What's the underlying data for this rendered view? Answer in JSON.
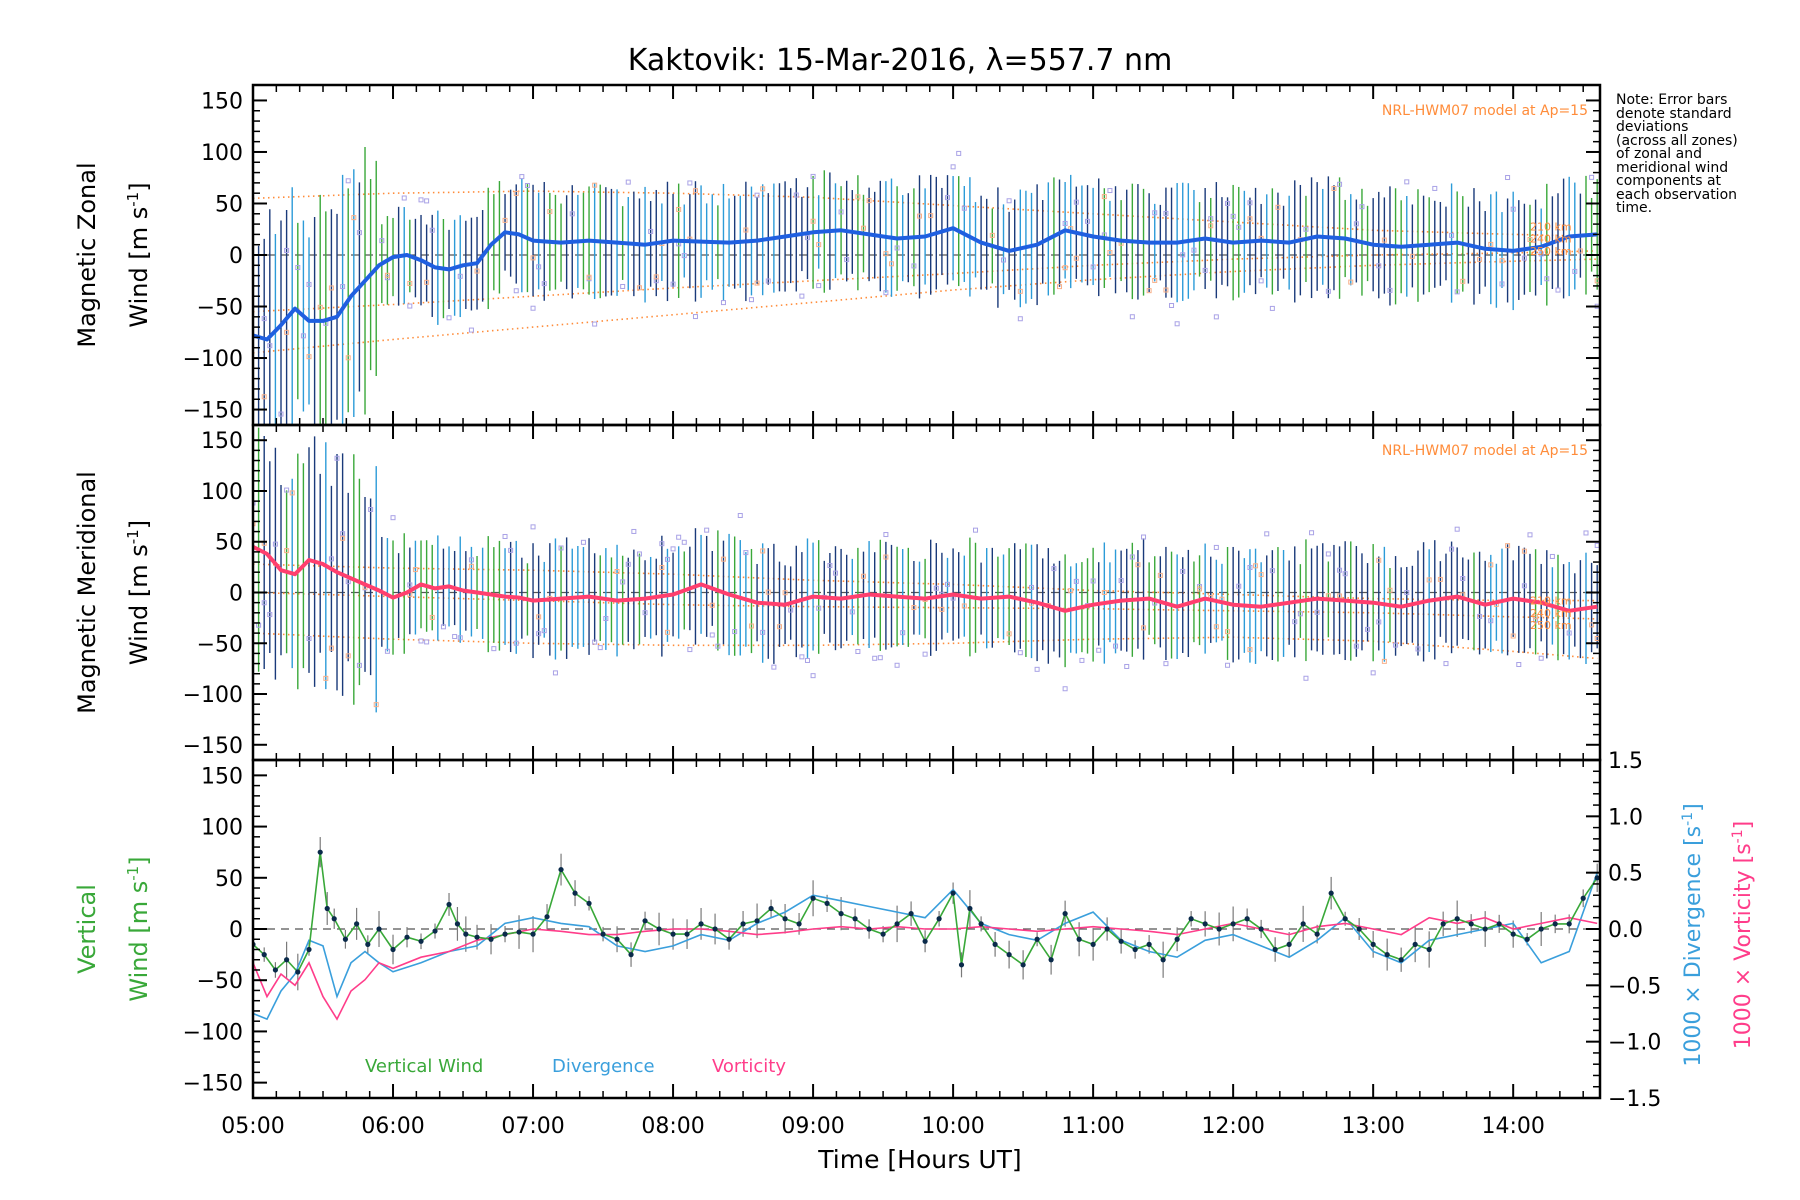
{
  "title": "Kaktovik: 15-Mar-2016, λ=557.7 nm",
  "note_lines": [
    "Note: Error bars",
    "denote standard",
    "deviations",
    "(across all zones)",
    "of zonal and",
    "meridional wind",
    "components at",
    "each observation",
    "time."
  ],
  "xlabel": "Time [Hours UT]",
  "xticks": [
    "05:00",
    "06:00",
    "07:00",
    "08:00",
    "09:00",
    "10:00",
    "11:00",
    "12:00",
    "13:00",
    "14:00"
  ],
  "xticks_hours": [
    5,
    6,
    7,
    8,
    9,
    10,
    11,
    12,
    13,
    14
  ],
  "colors": {
    "zonal_mean": "#1f5fe0",
    "meridional_mean": "#ff3f6e",
    "model": "#ff8c3a",
    "scatter": "#a9a2e6",
    "vertical": "#39a839",
    "divergence": "#3a9fdc",
    "vorticity": "#ff3d8a",
    "points": "#0a2a4a"
  },
  "chart_data": [
    {
      "type": "line",
      "name": "zonal-panel",
      "ylabel_line1": "Magnetic Zonal",
      "ylabel_line2": "Wind [m s",
      "ylabel_sup": "-1",
      "ylabel_close": "]",
      "model_label": "NRL-HWM07 model at Ap=15",
      "model_alt_labels": [
        "210 km",
        "240 km",
        "250 km"
      ],
      "xlim": [
        5.0,
        14.62
      ],
      "ylim": [
        -165,
        165
      ],
      "yticks": [
        "-150",
        "-100",
        "-50",
        "0",
        "50",
        "100",
        "150"
      ],
      "yticks_values": [
        -150,
        -100,
        -50,
        0,
        50,
        100,
        150
      ],
      "mean_x": [
        5.0,
        5.1,
        5.2,
        5.3,
        5.4,
        5.5,
        5.6,
        5.7,
        5.8,
        5.9,
        6.0,
        6.1,
        6.2,
        6.3,
        6.4,
        6.5,
        6.6,
        6.7,
        6.8,
        6.9,
        7.0,
        7.2,
        7.4,
        7.6,
        7.8,
        8.0,
        8.2,
        8.4,
        8.6,
        8.8,
        9.0,
        9.2,
        9.4,
        9.6,
        9.8,
        10.0,
        10.2,
        10.4,
        10.6,
        10.8,
        11.0,
        11.2,
        11.4,
        11.6,
        11.8,
        12.0,
        12.2,
        12.4,
        12.6,
        12.8,
        13.0,
        13.2,
        13.4,
        13.6,
        13.8,
        14.0,
        14.2,
        14.4,
        14.6
      ],
      "mean_y": [
        -78,
        -82,
        -68,
        -52,
        -64,
        -64,
        -60,
        -40,
        -25,
        -10,
        -2,
        0,
        -5,
        -12,
        -14,
        -10,
        -8,
        10,
        22,
        20,
        14,
        12,
        14,
        12,
        10,
        14,
        13,
        12,
        14,
        18,
        22,
        24,
        20,
        16,
        18,
        26,
        12,
        4,
        10,
        24,
        18,
        14,
        12,
        12,
        16,
        12,
        14,
        12,
        18,
        16,
        10,
        8,
        10,
        12,
        6,
        4,
        8,
        18,
        20
      ],
      "model_curves": [
        {
          "x": [
            5.0,
            6.0,
            7.0,
            8.0,
            9.0,
            10.0,
            11.0,
            12.0,
            13.0,
            14.0,
            14.6
          ],
          "y": [
            55,
            60,
            62,
            60,
            56,
            48,
            40,
            32,
            24,
            20,
            18
          ]
        },
        {
          "x": [
            5.0,
            6.0,
            7.0,
            8.0,
            9.0,
            10.0,
            11.0,
            12.0,
            13.0,
            14.0,
            14.6
          ],
          "y": [
            -95,
            -82,
            -70,
            -58,
            -46,
            -34,
            -24,
            -16,
            -10,
            -6,
            -4
          ]
        },
        {
          "x": [
            5.0,
            6.0,
            7.0,
            8.0,
            9.0,
            10.0,
            11.0,
            12.0,
            13.0,
            14.0,
            14.6
          ],
          "y": [
            -55,
            -48,
            -40,
            -32,
            -25,
            -18,
            -10,
            -4,
            0,
            2,
            4
          ]
        }
      ]
    },
    {
      "type": "line",
      "name": "meridional-panel",
      "ylabel_line1": "Magnetic Meridional",
      "ylabel_line2": "Wind [m s",
      "ylabel_sup": "-1",
      "ylabel_close": "]",
      "model_label": "NRL-HWM07 model at Ap=15",
      "model_alt_labels": [
        "210 km",
        "240 km",
        "250 km"
      ],
      "xlim": [
        5.0,
        14.62
      ],
      "ylim": [
        -165,
        165
      ],
      "yticks": [
        "-150",
        "-100",
        "-50",
        "0",
        "50",
        "100",
        "150"
      ],
      "yticks_values": [
        -150,
        -100,
        -50,
        0,
        50,
        100,
        150
      ],
      "mean_x": [
        5.0,
        5.1,
        5.2,
        5.3,
        5.4,
        5.5,
        5.6,
        5.7,
        5.8,
        5.9,
        6.0,
        6.1,
        6.2,
        6.3,
        6.4,
        6.5,
        6.6,
        6.7,
        6.8,
        6.9,
        7.0,
        7.2,
        7.4,
        7.6,
        7.8,
        8.0,
        8.2,
        8.4,
        8.6,
        8.8,
        9.0,
        9.2,
        9.4,
        9.6,
        9.8,
        10.0,
        10.2,
        10.4,
        10.6,
        10.8,
        11.0,
        11.2,
        11.4,
        11.6,
        11.8,
        12.0,
        12.2,
        12.4,
        12.6,
        12.8,
        13.0,
        13.2,
        13.4,
        13.6,
        13.8,
        14.0,
        14.2,
        14.4,
        14.6
      ],
      "mean_y": [
        45,
        38,
        22,
        18,
        32,
        28,
        20,
        14,
        8,
        2,
        -5,
        0,
        8,
        4,
        6,
        2,
        0,
        -2,
        -4,
        -5,
        -8,
        -6,
        -4,
        -8,
        -6,
        -2,
        8,
        -2,
        -10,
        -12,
        -4,
        -6,
        -2,
        -4,
        -6,
        -2,
        -6,
        -4,
        -10,
        -18,
        -12,
        -8,
        -6,
        -14,
        -6,
        -12,
        -14,
        -10,
        -6,
        -8,
        -10,
        -14,
        -8,
        -4,
        -12,
        -6,
        -10,
        -18,
        -14
      ],
      "model_curves": [
        {
          "x": [
            5.0,
            6.0,
            7.0,
            8.0,
            9.0,
            10.0,
            11.0,
            12.0,
            13.0,
            14.0,
            14.6
          ],
          "y": [
            28,
            24,
            22,
            18,
            12,
            8,
            2,
            -2,
            -6,
            -8,
            -8
          ]
        },
        {
          "x": [
            5.0,
            6.0,
            7.0,
            8.0,
            9.0,
            10.0,
            11.0,
            12.0,
            13.0,
            14.0,
            14.6
          ],
          "y": [
            -40,
            -46,
            -50,
            -52,
            -52,
            -50,
            -46,
            -44,
            -48,
            -58,
            -65
          ]
        },
        {
          "x": [
            5.0,
            6.0,
            7.0,
            8.0,
            9.0,
            10.0,
            11.0,
            12.0,
            13.0,
            14.0,
            14.6
          ],
          "y": [
            0,
            -4,
            -8,
            -12,
            -14,
            -15,
            -16,
            -18,
            -20,
            -24,
            -26
          ]
        }
      ]
    },
    {
      "type": "line",
      "name": "vertical-panel",
      "ylabel_line1": "Vertical",
      "ylabel_line2": "Wind [m s",
      "ylabel_sup": "-1",
      "ylabel_close": "]",
      "right_label_div": "1000 × Divergence [s",
      "right_label_vort": "1000 × Vorticity [s",
      "right_label_sup": "-1",
      "right_label_close": "]",
      "xlim": [
        5.0,
        14.62
      ],
      "ylim": [
        -165,
        165
      ],
      "yticks": [
        "-150",
        "-100",
        "-50",
        "0",
        "50",
        "100",
        "150"
      ],
      "yticks_values": [
        -150,
        -100,
        -50,
        0,
        50,
        100,
        150
      ],
      "y2lim": [
        -1.5,
        1.5
      ],
      "y2ticks": [
        "-1.5",
        "-1.0",
        "-0.5",
        "0.0",
        "0.5",
        "1.0",
        "1.5"
      ],
      "y2ticks_values": [
        -1.5,
        -1.0,
        -0.5,
        0.0,
        0.5,
        1.0,
        1.5
      ],
      "legend": [
        "Vertical Wind",
        "Divergence",
        "Vorticity"
      ],
      "vertical_x": [
        5.0,
        5.08,
        5.16,
        5.24,
        5.32,
        5.4,
        5.48,
        5.53,
        5.58,
        5.66,
        5.74,
        5.82,
        5.9,
        6.0,
        6.1,
        6.2,
        6.3,
        6.4,
        6.46,
        6.52,
        6.6,
        6.7,
        6.8,
        6.9,
        7.0,
        7.1,
        7.2,
        7.3,
        7.4,
        7.5,
        7.6,
        7.7,
        7.8,
        7.9,
        8.0,
        8.1,
        8.2,
        8.3,
        8.4,
        8.5,
        8.6,
        8.7,
        8.8,
        8.9,
        9.0,
        9.1,
        9.2,
        9.3,
        9.4,
        9.5,
        9.6,
        9.7,
        9.8,
        9.9,
        10.0,
        10.06,
        10.12,
        10.2,
        10.3,
        10.4,
        10.5,
        10.6,
        10.7,
        10.8,
        10.9,
        11.0,
        11.1,
        11.2,
        11.3,
        11.4,
        11.5,
        11.6,
        11.7,
        11.8,
        11.9,
        12.0,
        12.1,
        12.2,
        12.3,
        12.4,
        12.5,
        12.6,
        12.7,
        12.8,
        12.9,
        13.0,
        13.1,
        13.2,
        13.3,
        13.4,
        13.5,
        13.6,
        13.7,
        13.8,
        13.9,
        14.0,
        14.1,
        14.2,
        14.3,
        14.4,
        14.5,
        14.6
      ],
      "vertical_y": [
        -15,
        -25,
        -40,
        -30,
        -42,
        -20,
        75,
        20,
        10,
        -10,
        5,
        -15,
        0,
        -20,
        -8,
        -12,
        -2,
        24,
        5,
        -5,
        -8,
        -10,
        -5,
        -3,
        -5,
        12,
        58,
        35,
        25,
        -5,
        -10,
        -25,
        8,
        0,
        -5,
        -5,
        5,
        0,
        -10,
        5,
        8,
        20,
        10,
        5,
        30,
        25,
        15,
        10,
        0,
        -5,
        5,
        15,
        -12,
        10,
        35,
        -35,
        20,
        5,
        -15,
        -25,
        -35,
        -10,
        -30,
        15,
        -10,
        -15,
        0,
        -12,
        -20,
        -15,
        -30,
        -10,
        10,
        5,
        0,
        5,
        10,
        0,
        -20,
        -15,
        5,
        -5,
        35,
        10,
        0,
        -15,
        -25,
        -30,
        -15,
        -20,
        5,
        10,
        5,
        0,
        5,
        -5,
        -10,
        0,
        5,
        5,
        30,
        50
      ],
      "divergence_x": [
        5.0,
        5.1,
        5.2,
        5.3,
        5.4,
        5.5,
        5.6,
        5.7,
        5.8,
        5.9,
        6.0,
        6.2,
        6.4,
        6.6,
        6.8,
        7.0,
        7.2,
        7.4,
        7.6,
        7.8,
        8.0,
        8.2,
        8.4,
        8.6,
        8.8,
        9.0,
        9.2,
        9.4,
        9.6,
        9.8,
        10.0,
        10.2,
        10.4,
        10.6,
        10.8,
        11.0,
        11.2,
        11.4,
        11.6,
        11.8,
        12.0,
        12.2,
        12.4,
        12.6,
        12.8,
        13.0,
        13.2,
        13.4,
        13.6,
        13.8,
        14.0,
        14.2,
        14.4,
        14.6
      ],
      "divergence_y": [
        -0.75,
        -0.8,
        -0.55,
        -0.4,
        -0.1,
        -0.15,
        -0.6,
        -0.3,
        -0.2,
        -0.3,
        -0.38,
        -0.3,
        -0.2,
        -0.15,
        0.05,
        0.1,
        0.05,
        0.02,
        -0.15,
        -0.2,
        -0.15,
        -0.05,
        -0.1,
        0.05,
        0.15,
        0.3,
        0.25,
        0.2,
        0.15,
        0.1,
        0.35,
        0.05,
        -0.05,
        -0.1,
        0.05,
        0.15,
        -0.1,
        -0.2,
        -0.25,
        -0.1,
        -0.05,
        -0.15,
        -0.25,
        -0.1,
        0.1,
        -0.2,
        -0.3,
        -0.1,
        -0.05,
        0.0,
        0.05,
        -0.3,
        -0.2,
        0.5
      ],
      "vorticity_x": [
        5.0,
        5.1,
        5.2,
        5.3,
        5.4,
        5.5,
        5.6,
        5.7,
        5.8,
        5.9,
        6.0,
        6.2,
        6.4,
        6.6,
        6.8,
        7.0,
        7.2,
        7.4,
        7.6,
        7.8,
        8.0,
        8.2,
        8.4,
        8.6,
        8.8,
        9.0,
        9.2,
        9.4,
        9.6,
        9.8,
        10.0,
        10.2,
        10.4,
        10.6,
        10.8,
        11.0,
        11.2,
        11.4,
        11.6,
        11.8,
        12.0,
        12.2,
        12.4,
        12.6,
        12.8,
        13.0,
        13.2,
        13.4,
        13.6,
        13.8,
        14.0,
        14.2,
        14.4,
        14.6
      ],
      "vorticity_y": [
        -0.3,
        -0.6,
        -0.4,
        -0.5,
        -0.3,
        -0.6,
        -0.8,
        -0.55,
        -0.45,
        -0.3,
        -0.35,
        -0.25,
        -0.2,
        -0.1,
        -0.05,
        0.0,
        -0.02,
        -0.05,
        -0.05,
        -0.02,
        0.0,
        0.0,
        -0.02,
        -0.05,
        -0.03,
        0.0,
        0.02,
        0.0,
        0.02,
        0.0,
        0.0,
        0.02,
        0.0,
        -0.02,
        0.0,
        0.02,
        0.0,
        -0.02,
        -0.05,
        0.0,
        0.05,
        0.0,
        -0.05,
        0.02,
        0.05,
        0.0,
        -0.05,
        0.1,
        0.05,
        0.1,
        0.0,
        0.05,
        0.1,
        0.05
      ]
    }
  ]
}
